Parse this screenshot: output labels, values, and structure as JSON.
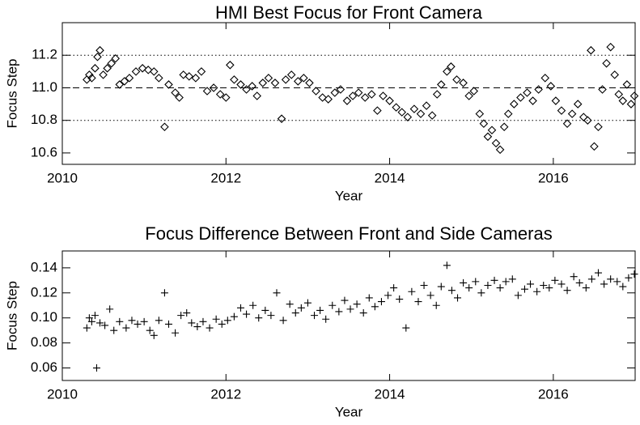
{
  "chart_data": [
    {
      "type": "scatter",
      "title": "HMI Best Focus for Front Camera",
      "x_label": "Year",
      "y_label": "Focus Step",
      "marker": "diamond",
      "color": "#000000",
      "x": [
        2010.3,
        2010.33,
        2010.36,
        2010.4,
        2010.43,
        2010.46,
        2010.5,
        2010.55,
        2010.6,
        2010.65,
        2010.7,
        2010.76,
        2010.82,
        2010.9,
        2010.98,
        2011.05,
        2011.12,
        2011.18,
        2011.25,
        2011.3,
        2011.38,
        2011.43,
        2011.48,
        2011.55,
        2011.63,
        2011.7,
        2011.77,
        2011.85,
        2011.93,
        2012.0,
        2012.05,
        2012.1,
        2012.18,
        2012.25,
        2012.32,
        2012.38,
        2012.45,
        2012.52,
        2012.6,
        2012.68,
        2012.73,
        2012.8,
        2012.88,
        2012.95,
        2013.02,
        2013.1,
        2013.18,
        2013.25,
        2013.33,
        2013.4,
        2013.48,
        2013.55,
        2013.62,
        2013.7,
        2013.78,
        2013.85,
        2013.92,
        2014.0,
        2014.08,
        2014.15,
        2014.22,
        2014.3,
        2014.38,
        2014.45,
        2014.52,
        2014.58,
        2014.63,
        2014.7,
        2014.75,
        2014.82,
        2014.9,
        2014.97,
        2015.03,
        2015.1,
        2015.15,
        2015.2,
        2015.25,
        2015.3,
        2015.35,
        2015.4,
        2015.45,
        2015.52,
        2015.6,
        2015.68,
        2015.75,
        2015.82,
        2015.9,
        2015.97,
        2016.03,
        2016.1,
        2016.17,
        2016.23,
        2016.3,
        2016.37,
        2016.42,
        2016.46,
        2016.5,
        2016.55,
        2016.6,
        2016.65,
        2016.7,
        2016.75,
        2016.8,
        2016.85,
        2016.9,
        2016.95,
        2016.99
      ],
      "values": [
        11.05,
        11.08,
        11.06,
        11.12,
        11.19,
        11.23,
        11.08,
        11.12,
        11.15,
        11.18,
        11.02,
        11.04,
        11.06,
        11.1,
        11.12,
        11.11,
        11.1,
        11.06,
        10.76,
        11.02,
        10.97,
        10.94,
        11.08,
        11.07,
        11.06,
        11.1,
        10.98,
        11.0,
        10.96,
        10.94,
        11.14,
        11.05,
        11.02,
        10.99,
        11.01,
        10.95,
        11.03,
        11.06,
        11.03,
        10.81,
        11.05,
        11.08,
        11.04,
        11.06,
        11.03,
        10.98,
        10.94,
        10.93,
        10.97,
        10.99,
        10.92,
        10.95,
        10.97,
        10.94,
        10.96,
        10.86,
        10.95,
        10.92,
        10.88,
        10.85,
        10.82,
        10.87,
        10.84,
        10.89,
        10.83,
        10.96,
        11.02,
        11.1,
        11.13,
        11.05,
        11.03,
        10.95,
        10.98,
        10.84,
        10.78,
        10.7,
        10.74,
        10.66,
        10.62,
        10.76,
        10.84,
        10.9,
        10.94,
        10.97,
        10.92,
        10.99,
        11.06,
        11.01,
        10.92,
        10.86,
        10.78,
        10.84,
        10.9,
        10.82,
        10.8,
        11.23,
        10.64,
        10.76,
        10.99,
        11.15,
        11.25,
        11.08,
        10.96,
        10.92,
        11.02,
        10.9,
        10.95
      ],
      "xlim": [
        2010,
        2017
      ],
      "ylim": [
        10.53,
        11.4
      ],
      "xticks": [
        2010,
        2012,
        2014,
        2016
      ],
      "yticks": [
        10.6,
        10.8,
        {
          "value": 11,
          "label": "11.0"
        },
        11.2
      ],
      "hlines": [
        {
          "value": 11.2,
          "style": "dotted"
        },
        {
          "value": 11,
          "style": "dashed"
        },
        {
          "value": 10.8,
          "style": "dotted"
        }
      ]
    },
    {
      "type": "scatter",
      "title": "Focus Difference Between Front and Side Cameras",
      "x_label": "Year",
      "y_label": "Focus Step",
      "marker": "plus",
      "color": "#000000",
      "x": [
        2010.3,
        2010.33,
        2010.36,
        2010.4,
        2010.42,
        2010.46,
        2010.52,
        2010.58,
        2010.63,
        2010.7,
        2010.78,
        2010.85,
        2010.92,
        2011.0,
        2011.07,
        2011.12,
        2011.18,
        2011.25,
        2011.3,
        2011.38,
        2011.45,
        2011.52,
        2011.58,
        2011.65,
        2011.72,
        2011.8,
        2011.88,
        2011.95,
        2012.02,
        2012.1,
        2012.18,
        2012.25,
        2012.33,
        2012.4,
        2012.48,
        2012.55,
        2012.62,
        2012.7,
        2012.78,
        2012.85,
        2012.92,
        2013.0,
        2013.08,
        2013.15,
        2013.22,
        2013.3,
        2013.38,
        2013.45,
        2013.52,
        2013.6,
        2013.68,
        2013.75,
        2013.82,
        2013.9,
        2013.98,
        2014.05,
        2014.12,
        2014.2,
        2014.27,
        2014.35,
        2014.42,
        2014.5,
        2014.57,
        2014.63,
        2014.7,
        2014.76,
        2014.83,
        2014.9,
        2014.97,
        2015.05,
        2015.12,
        2015.2,
        2015.28,
        2015.35,
        2015.42,
        2015.5,
        2015.57,
        2015.65,
        2015.72,
        2015.8,
        2015.88,
        2015.95,
        2016.02,
        2016.1,
        2016.17,
        2016.25,
        2016.32,
        2016.4,
        2016.47,
        2016.55,
        2016.62,
        2016.7,
        2016.78,
        2016.85,
        2016.92,
        2016.99
      ],
      "values": [
        0.092,
        0.1,
        0.097,
        0.102,
        0.06,
        0.096,
        0.094,
        0.107,
        0.09,
        0.097,
        0.092,
        0.098,
        0.095,
        0.097,
        0.09,
        0.086,
        0.098,
        0.12,
        0.095,
        0.088,
        0.102,
        0.104,
        0.096,
        0.093,
        0.097,
        0.092,
        0.099,
        0.095,
        0.098,
        0.101,
        0.108,
        0.103,
        0.11,
        0.1,
        0.106,
        0.102,
        0.12,
        0.098,
        0.111,
        0.104,
        0.108,
        0.112,
        0.102,
        0.106,
        0.099,
        0.11,
        0.105,
        0.114,
        0.107,
        0.111,
        0.104,
        0.116,
        0.109,
        0.113,
        0.118,
        0.124,
        0.115,
        0.092,
        0.121,
        0.113,
        0.126,
        0.118,
        0.11,
        0.125,
        0.142,
        0.122,
        0.116,
        0.128,
        0.124,
        0.129,
        0.12,
        0.126,
        0.13,
        0.124,
        0.129,
        0.131,
        0.118,
        0.123,
        0.127,
        0.121,
        0.126,
        0.124,
        0.13,
        0.127,
        0.122,
        0.133,
        0.128,
        0.124,
        0.131,
        0.136,
        0.127,
        0.131,
        0.129,
        0.125,
        0.132,
        0.135
      ],
      "xlim": [
        2010,
        2017
      ],
      "ylim": [
        0.05,
        0.1535
      ],
      "xticks": [
        2010,
        2012,
        2014,
        2016
      ],
      "yticks": [
        0.06,
        0.08,
        {
          "value": 0.1,
          "label": "0.10"
        },
        0.12,
        0.14
      ]
    }
  ]
}
